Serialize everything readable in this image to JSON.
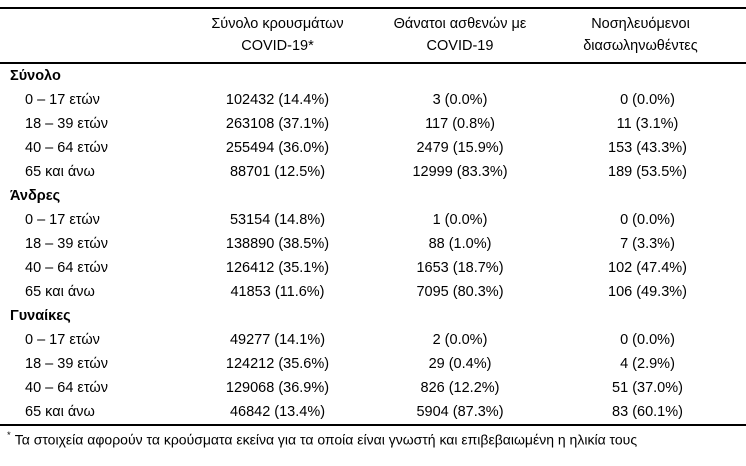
{
  "table": {
    "columns": [
      {
        "line1": "",
        "line2": ""
      },
      {
        "line1": "Σύνολο κρουσμάτων",
        "line2": "COVID-19*"
      },
      {
        "line1": "Θάνατοι ασθενών με",
        "line2": "COVID-19"
      },
      {
        "line1": "Νοσηλευόμενοι",
        "line2": "διασωληνωθέντες"
      }
    ],
    "sections": [
      {
        "label": "Σύνολο",
        "rows": [
          {
            "age": "0 – 17 ετών",
            "cases": "102432 (14.4%)",
            "deaths": "3 (0.0%)",
            "intubated": "0 (0.0%)"
          },
          {
            "age": "18 – 39 ετών",
            "cases": "263108 (37.1%)",
            "deaths": "117 (0.8%)",
            "intubated": "11 (3.1%)"
          },
          {
            "age": "40 – 64 ετών",
            "cases": "255494 (36.0%)",
            "deaths": "2479 (15.9%)",
            "intubated": "153 (43.3%)"
          },
          {
            "age": "65 και άνω",
            "cases": "88701 (12.5%)",
            "deaths": "12999 (83.3%)",
            "intubated": "189 (53.5%)"
          }
        ]
      },
      {
        "label": "Άνδρες",
        "rows": [
          {
            "age": "0 – 17 ετών",
            "cases": "53154 (14.8%)",
            "deaths": "1 (0.0%)",
            "intubated": "0 (0.0%)"
          },
          {
            "age": "18 – 39 ετών",
            "cases": "138890 (38.5%)",
            "deaths": "88 (1.0%)",
            "intubated": "7 (3.3%)"
          },
          {
            "age": "40 – 64 ετών",
            "cases": "126412 (35.1%)",
            "deaths": "1653 (18.7%)",
            "intubated": "102 (47.4%)"
          },
          {
            "age": "65 και άνω",
            "cases": "41853 (11.6%)",
            "deaths": "7095 (80.3%)",
            "intubated": "106 (49.3%)"
          }
        ]
      },
      {
        "label": "Γυναίκες",
        "rows": [
          {
            "age": "0 – 17 ετών",
            "cases": "49277 (14.1%)",
            "deaths": "2 (0.0%)",
            "intubated": "0 (0.0%)"
          },
          {
            "age": "18 – 39 ετών",
            "cases": "124212 (35.6%)",
            "deaths": "29 (0.4%)",
            "intubated": "4 (2.9%)"
          },
          {
            "age": "40 – 64 ετών",
            "cases": "129068 (36.9%)",
            "deaths": "826 (12.2%)",
            "intubated": "51 (37.0%)"
          },
          {
            "age": "65 και άνω",
            "cases": "46842 (13.4%)",
            "deaths": "5904 (87.3%)",
            "intubated": "83 (60.1%)"
          }
        ]
      }
    ],
    "footnote": {
      "marker": "*",
      "text": "Τα στοιχεία αφορούν τα κρούσματα εκείνα για τα οποία είναι γνωστή και επιβεβαιωμένη η ηλικία τους"
    }
  }
}
